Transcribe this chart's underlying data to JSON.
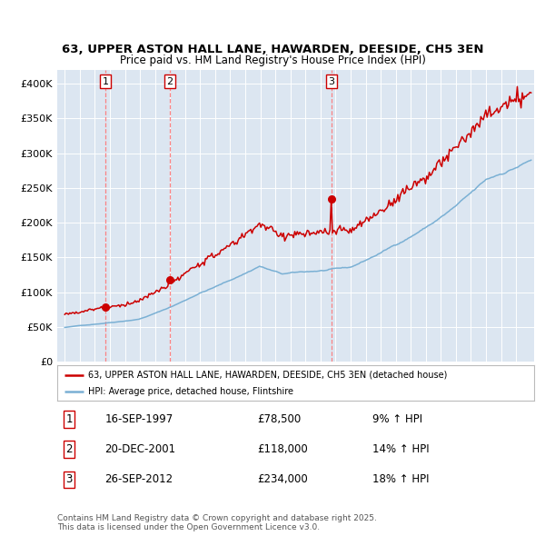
{
  "title1": "63, UPPER ASTON HALL LANE, HAWARDEN, DEESIDE, CH5 3EN",
  "title2": "Price paid vs. HM Land Registry's House Price Index (HPI)",
  "bg_color": "#dce6f1",
  "hpi_color": "#7ab0d4",
  "price_color": "#cc0000",
  "ylim": [
    0,
    420000
  ],
  "yticks": [
    0,
    50000,
    100000,
    150000,
    200000,
    250000,
    300000,
    350000,
    400000
  ],
  "ytick_labels": [
    "£0",
    "£50K",
    "£100K",
    "£150K",
    "£200K",
    "£250K",
    "£300K",
    "£350K",
    "£400K"
  ],
  "sale1_date": 1997.71,
  "sale1_price": 78500,
  "sale2_date": 2001.97,
  "sale2_price": 118000,
  "sale3_date": 2012.73,
  "sale3_price": 234000,
  "legend_price": "63, UPPER ASTON HALL LANE, HAWARDEN, DEESIDE, CH5 3EN (detached house)",
  "legend_hpi": "HPI: Average price, detached house, Flintshire",
  "footnote": "Contains HM Land Registry data © Crown copyright and database right 2025.\nThis data is licensed under the Open Government Licence v3.0.",
  "table_rows": [
    [
      "1",
      "16-SEP-1997",
      "£78,500",
      "9% ↑ HPI"
    ],
    [
      "2",
      "20-DEC-2001",
      "£118,000",
      "14% ↑ HPI"
    ],
    [
      "3",
      "26-SEP-2012",
      "£234,000",
      "18% ↑ HPI"
    ]
  ]
}
